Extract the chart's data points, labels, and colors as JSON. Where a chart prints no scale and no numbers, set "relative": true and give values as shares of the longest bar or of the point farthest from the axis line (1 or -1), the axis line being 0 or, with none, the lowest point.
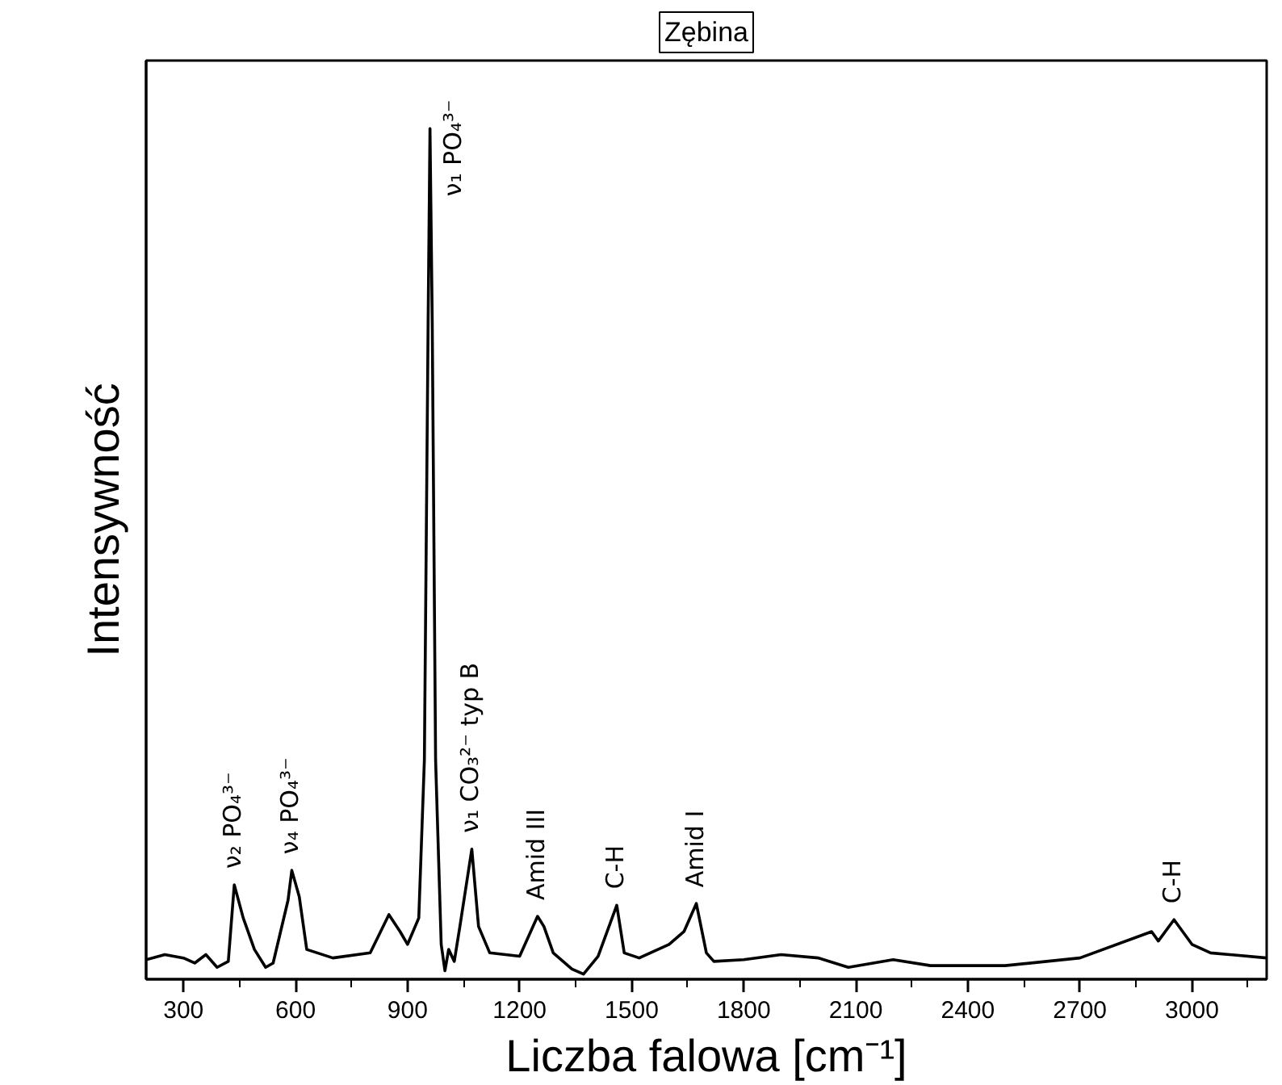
{
  "chart_data": {
    "type": "line",
    "title": "Zębina",
    "xlabel": "Liczba falowa [cm⁻¹]",
    "ylabel": "Intensywność",
    "relative": true,
    "tick_labels": "x",
    "grid": false,
    "xlim": [
      200,
      3200
    ],
    "xticks": [
      300,
      600,
      900,
      1200,
      1500,
      1800,
      2100,
      2400,
      2700,
      3000
    ],
    "series": [
      {
        "color": "#000000",
        "x": [
          200,
          250,
          300,
          330,
          360,
          390,
          420,
          436,
          460,
          490,
          520,
          540,
          560,
          580,
          590,
          610,
          630,
          700,
          800,
          850,
          880,
          900,
          930,
          945,
          955,
          960,
          966,
          975,
          990,
          1000,
          1010,
          1025,
          1040,
          1072,
          1090,
          1120,
          1200,
          1248,
          1265,
          1290,
          1340,
          1371,
          1410,
          1460,
          1480,
          1520,
          1600,
          1640,
          1673,
          1700,
          1720,
          1800,
          1900,
          2000,
          2080,
          2200,
          2300,
          2500,
          2700,
          2892,
          2910,
          2952,
          3000,
          3050,
          3200
        ],
        "values": [
          0.023,
          0.029,
          0.025,
          0.019,
          0.029,
          0.014,
          0.021,
          0.111,
          0.072,
          0.035,
          0.014,
          0.019,
          0.056,
          0.093,
          0.128,
          0.097,
          0.035,
          0.025,
          0.031,
          0.076,
          0.056,
          0.041,
          0.072,
          0.258,
          0.773,
          1.0,
          0.773,
          0.258,
          0.041,
          0.01,
          0.035,
          0.021,
          0.062,
          0.153,
          0.062,
          0.031,
          0.027,
          0.074,
          0.062,
          0.031,
          0.012,
          0.006,
          0.027,
          0.087,
          0.031,
          0.025,
          0.041,
          0.056,
          0.089,
          0.031,
          0.021,
          0.023,
          0.029,
          0.025,
          0.014,
          0.023,
          0.016,
          0.016,
          0.025,
          0.056,
          0.045,
          0.07,
          0.041,
          0.031,
          0.025
        ]
      }
    ],
    "annotations": [
      {
        "text": "ν₂ PO₄³⁻",
        "x": 436,
        "y": 0.111
      },
      {
        "text": "ν₄ PO₄³⁻",
        "x": 590,
        "y": 0.128
      },
      {
        "text": "ν₁ PO₄³⁻",
        "x": 960,
        "y": 1.0
      },
      {
        "text": "ν₁ CO₃²⁻ typ B",
        "x": 1072,
        "y": 0.153
      },
      {
        "text": "Amid III",
        "x": 1248,
        "y": 0.074
      },
      {
        "text": "C-H",
        "x": 1460,
        "y": 0.087
      },
      {
        "text": "Amid I",
        "x": 1673,
        "y": 0.089
      },
      {
        "text": "C-H",
        "x": 2952,
        "y": 0.07
      }
    ]
  }
}
